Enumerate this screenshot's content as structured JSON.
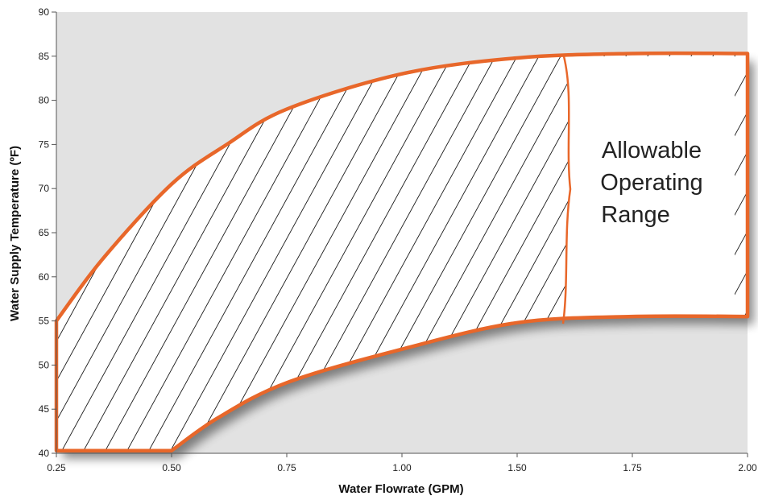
{
  "chart_data": {
    "type": "area",
    "title": "",
    "xlabel": "Water Flowrate (GPM)",
    "ylabel": "Water Supply Temperature (ºF)",
    "x_tick_labels": [
      "0.25",
      "0.50",
      "0.75",
      "1.00",
      "1.50",
      "1.75",
      "2.00"
    ],
    "y_ticks": [
      40,
      45,
      50,
      55,
      60,
      65,
      70,
      75,
      80,
      85,
      90
    ],
    "y_tick_labels": [
      "40",
      "45",
      "50",
      "55",
      "60",
      "65",
      "70",
      "75",
      "80",
      "85",
      "90"
    ],
    "ylim": [
      40,
      90
    ],
    "grid": false,
    "region": {
      "label_lines": [
        "Allowable",
        "Operating",
        "Range"
      ],
      "upper_boundary": [
        {
          "x": 0.25,
          "y": 52.5
        },
        {
          "x": 0.25,
          "y": 55
        },
        {
          "x": 0.35,
          "y": 62
        },
        {
          "x": 0.5,
          "y": 70.5
        },
        {
          "x": 0.62,
          "y": 75
        },
        {
          "x": 0.75,
          "y": 79
        },
        {
          "x": 1.0,
          "y": 83
        },
        {
          "x": 1.5,
          "y": 84.8
        },
        {
          "x": 1.75,
          "y": 85.3
        },
        {
          "x": 2.0,
          "y": 85.3
        }
      ],
      "lower_boundary": [
        {
          "x": 0.25,
          "y": 40.3
        },
        {
          "x": 0.5,
          "y": 40.3
        },
        {
          "x": 0.6,
          "y": 44
        },
        {
          "x": 0.75,
          "y": 48
        },
        {
          "x": 1.0,
          "y": 51.8
        },
        {
          "x": 1.5,
          "y": 54.8
        },
        {
          "x": 1.75,
          "y": 55.5
        },
        {
          "x": 2.0,
          "y": 55.5
        }
      ]
    },
    "colors": {
      "plot_background": "#e2e2e2",
      "region_fill": "#ffffff",
      "boundary": "#e8672a",
      "hatch": "#1a1a1a",
      "axis": "#555555"
    }
  }
}
